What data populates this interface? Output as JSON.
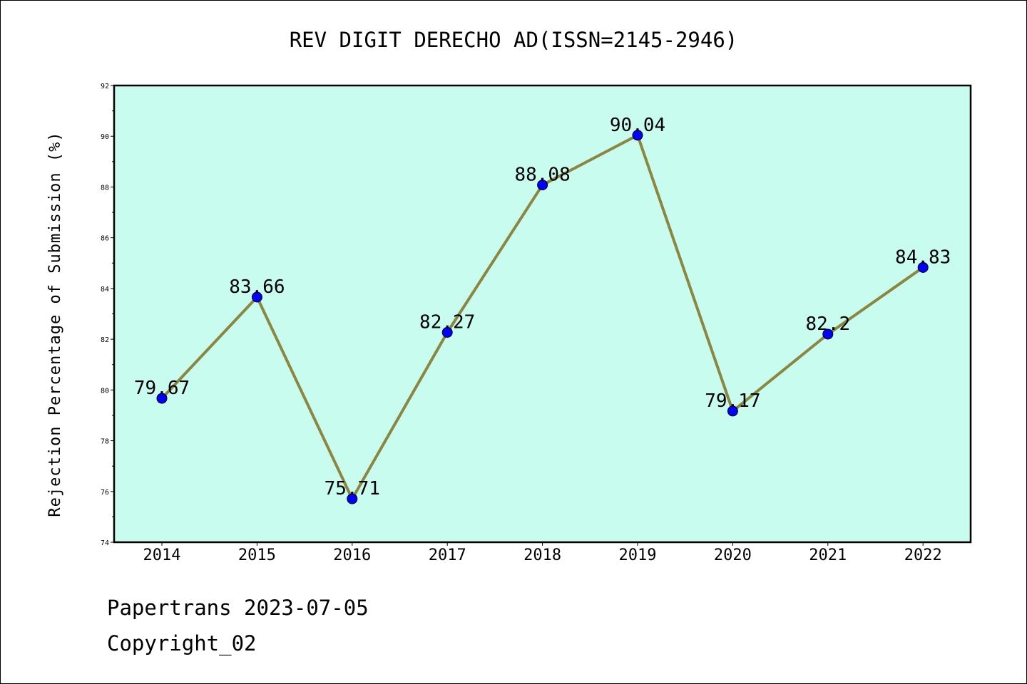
{
  "chart_data": {
    "type": "line",
    "title": "REV DIGIT DERECHO AD(ISSN=2145-2946)",
    "ylabel": "Rejection Percentage of Submission (%)",
    "xlabel": "",
    "categories": [
      "2014",
      "2015",
      "2016",
      "2017",
      "2018",
      "2019",
      "2020",
      "2021",
      "2022"
    ],
    "series": [
      {
        "values": [
          79.67,
          83.66,
          75.71,
          82.27,
          88.08,
          90.04,
          79.17,
          82.2,
          84.83
        ],
        "data_labels": [
          "79.67",
          "83.66",
          "75.71",
          "82.27",
          "88.08",
          "90.04",
          "79.17",
          "82.2",
          "84.83"
        ]
      }
    ],
    "ylim": [
      74,
      92
    ],
    "yticks": [
      74,
      76,
      78,
      80,
      82,
      84,
      86,
      88,
      90,
      92
    ],
    "grid": false,
    "legend": "none",
    "colors": {
      "plot_background": "#c8fcef",
      "line": "#8b8640",
      "marker": "#0000ff"
    }
  },
  "footer": {
    "line1": "Papertrans 2023-07-05",
    "line2": "Copyright_02"
  }
}
